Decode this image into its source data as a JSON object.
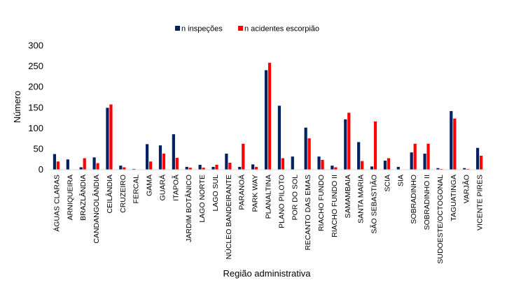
{
  "chart_data": {
    "type": "bar",
    "title": "",
    "xlabel": "Região administrativa",
    "ylabel": "Número",
    "ylim": [
      0,
      300
    ],
    "yticks": [
      0,
      50,
      100,
      150,
      200,
      250,
      300
    ],
    "grid": false,
    "legend_position": "top-center",
    "categories": [
      "ÁGUAS CLARAS",
      "ARNIQUEIRA",
      "BRAZLÂNDIA",
      "CANDANGOLÂNDIA",
      "CEILÂNDIA",
      "CRUZEIRO",
      "FERCAL",
      "GAMA",
      "GUARÁ",
      "ITAPOÃ",
      "JARDIM BOTÂNICO",
      "LAGO NORTE",
      "LAGO SUL",
      "NÚCLEO BANDEIRANTE",
      "PARANOÁ",
      "PARK WAY",
      "PLANALTINA",
      "PLANO PILOTO",
      "POR DO SOL",
      "RECANTO DAS EMAS",
      "RIACHO FUNDO",
      "RIACHO FUNDO II",
      "SAMAMBAIA",
      "SANTA MARIA",
      "SÃO SEBASTIÃO",
      "SCIA",
      "SIA",
      "SOBRADINHO",
      "SOBRADINHO II",
      "SUDOESTE/OCTOGONAL",
      "TAGUATINGA",
      "VARJÃO",
      "VICENTE PIRES"
    ],
    "series": [
      {
        "name": "n inspeções",
        "color": "#002060",
        "values": [
          37,
          24,
          5,
          29,
          149,
          9,
          1,
          61,
          58,
          85,
          6,
          11,
          6,
          38,
          6,
          12,
          240,
          154,
          31,
          101,
          31,
          9,
          121,
          66,
          7,
          21,
          6,
          41,
          38,
          3,
          141,
          3,
          52
        ]
      },
      {
        "name": "n acidentes escorpião",
        "color": "#ff0000",
        "values": [
          19,
          0,
          27,
          15,
          157,
          5,
          0,
          19,
          38,
          28,
          4,
          4,
          11,
          16,
          62,
          6,
          258,
          27,
          0,
          75,
          23,
          5,
          137,
          20,
          116,
          27,
          0,
          62,
          62,
          1,
          123,
          1,
          33
        ]
      }
    ]
  }
}
